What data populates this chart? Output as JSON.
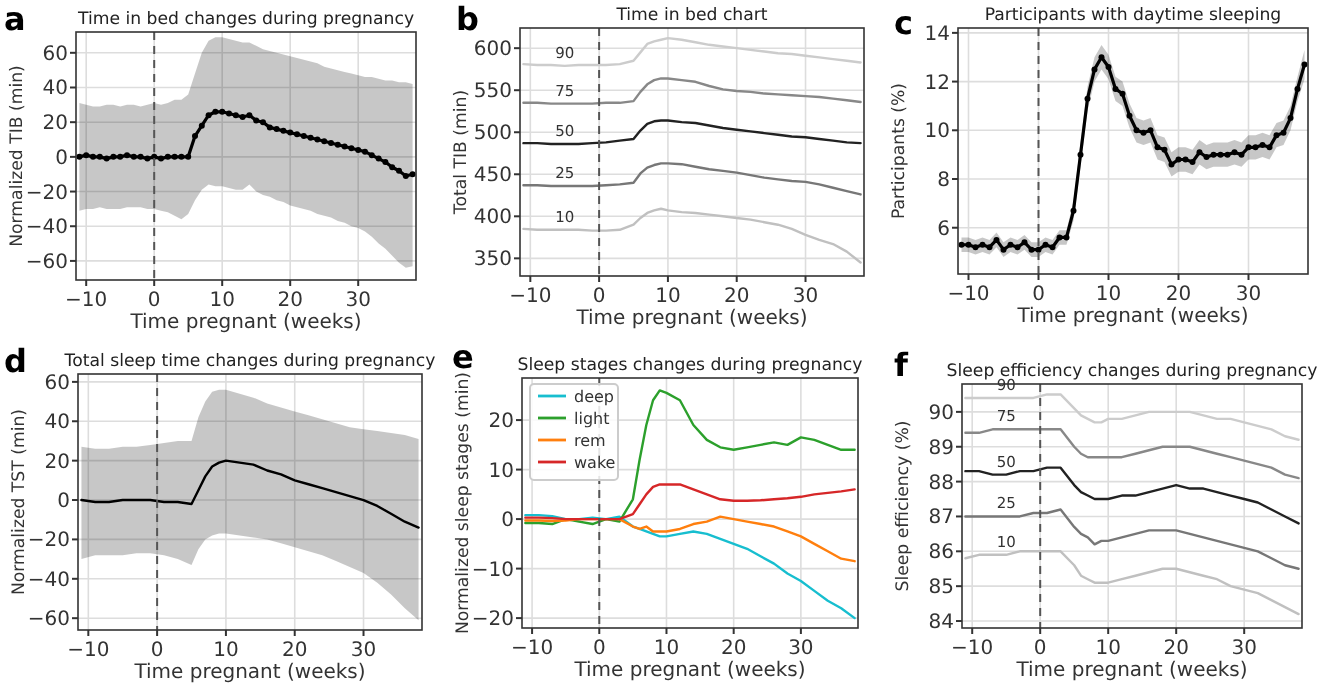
{
  "chart_data": [
    {
      "type": "line",
      "title": "Time in bed changes during pregnancy",
      "xlabel": "Time pregnant (weeks)",
      "ylabel": "Normalized TIB (min)",
      "annotations": [
        "a"
      ],
      "grid": true,
      "marker": "circle",
      "legend": false,
      "xlim": [
        -11.5,
        38.5
      ],
      "xticks": [
        -10,
        0,
        10,
        20,
        30
      ],
      "ylim": [
        -71,
        72
      ],
      "yticks": [
        -60,
        -40,
        -20,
        0,
        20,
        40,
        60
      ],
      "ref_lines": [
        {
          "axis": "x",
          "value": 0,
          "line_style": "dashed",
          "color": "#555555"
        }
      ],
      "x": [
        -11,
        -10,
        -9,
        -8,
        -7,
        -6,
        -5,
        -4,
        -3,
        -2,
        -1,
        0,
        1,
        2,
        3,
        4,
        5,
        6,
        7,
        8,
        9,
        10,
        11,
        12,
        13,
        14,
        15,
        16,
        17,
        18,
        19,
        20,
        21,
        22,
        23,
        24,
        25,
        26,
        27,
        28,
        29,
        30,
        31,
        32,
        33,
        34,
        35,
        36,
        37,
        38
      ],
      "series": [
        {
          "color": "#000000",
          "values": [
            0,
            1,
            0,
            0,
            -1,
            0,
            0,
            1,
            0,
            0,
            -1,
            0,
            -1,
            0,
            0,
            0,
            0,
            12,
            18,
            24,
            26,
            26,
            25,
            24,
            23,
            24,
            21,
            20,
            17,
            16,
            15,
            14,
            13,
            12,
            11,
            10,
            9,
            8,
            7,
            6,
            5,
            4,
            3,
            1,
            -1,
            -3,
            -6,
            -8,
            -11,
            -10
          ],
          "lower": [
            -31,
            -30,
            -30,
            -29,
            -30,
            -30,
            -30,
            -29,
            -29,
            -29,
            -30,
            -30,
            -31,
            -32,
            -34,
            -36,
            -33,
            -25,
            -19,
            -16,
            -17,
            -17,
            -18,
            -19,
            -19,
            -16,
            -20,
            -22,
            -23,
            -25,
            -26,
            -28,
            -29,
            -30,
            -31,
            -33,
            -34,
            -35,
            -37,
            -38,
            -40,
            -41,
            -43,
            -46,
            -50,
            -53,
            -57,
            -61,
            -64,
            -63
          ],
          "upper": [
            31,
            30,
            29,
            29,
            30,
            30,
            29,
            30,
            30,
            29,
            30,
            31,
            30,
            31,
            33,
            33,
            36,
            48,
            60,
            67,
            69,
            69,
            68,
            67,
            66,
            66,
            64,
            62,
            61,
            60,
            59,
            58,
            57,
            56,
            55,
            54,
            52,
            51,
            50,
            49,
            48,
            47,
            46,
            46,
            45,
            44,
            44,
            43,
            43,
            42
          ]
        }
      ]
    },
    {
      "type": "line",
      "title": "Time in bed chart",
      "xlabel": "Time pregnant (weeks)",
      "ylabel": "Total TIB (min)",
      "annotations": [
        "b"
      ],
      "grid": true,
      "legend": false,
      "xlim": [
        -11.5,
        38.5
      ],
      "xticks": [
        -10,
        0,
        10,
        20,
        30
      ],
      "ylim": [
        329,
        624
      ],
      "yticks": [
        350,
        400,
        450,
        500,
        550,
        600
      ],
      "ref_lines": [
        {
          "axis": "x",
          "value": 0,
          "line_style": "dashed",
          "color": "#555555"
        }
      ],
      "x": [
        -11,
        -9,
        -7,
        -5,
        -3,
        -1,
        1,
        3,
        5,
        6,
        7,
        8,
        9,
        10,
        12,
        14,
        16,
        18,
        20,
        22,
        24,
        26,
        28,
        30,
        32,
        34,
        36,
        38
      ],
      "series": [
        {
          "name": "90",
          "color": "#cccccc",
          "values": [
            581,
            580,
            580,
            579,
            580,
            580,
            580,
            581,
            585,
            595,
            605,
            608,
            610,
            612,
            610,
            607,
            604,
            602,
            600,
            598,
            596,
            594,
            593,
            591,
            589,
            587,
            585,
            583
          ]
        },
        {
          "name": "75",
          "color": "#888888",
          "values": [
            535,
            535,
            534,
            534,
            534,
            534,
            535,
            535,
            537,
            548,
            557,
            562,
            564,
            564,
            562,
            560,
            555,
            551,
            549,
            548,
            546,
            545,
            544,
            543,
            542,
            540,
            538,
            536
          ]
        },
        {
          "name": "50",
          "color": "#222222",
          "values": [
            487,
            487,
            486,
            486,
            486,
            487,
            488,
            490,
            492,
            502,
            510,
            513,
            514,
            514,
            512,
            511,
            508,
            505,
            503,
            501,
            499,
            497,
            495,
            494,
            492,
            490,
            488,
            487
          ]
        },
        {
          "name": "25",
          "color": "#777777",
          "values": [
            437,
            437,
            436,
            436,
            436,
            436,
            437,
            438,
            440,
            451,
            458,
            461,
            463,
            463,
            462,
            459,
            456,
            454,
            452,
            449,
            446,
            444,
            442,
            441,
            438,
            434,
            430,
            426
          ]
        },
        {
          "name": "10",
          "color": "#c0c0c0",
          "values": [
            385,
            384,
            384,
            384,
            384,
            383,
            383,
            384,
            390,
            398,
            404,
            407,
            409,
            407,
            405,
            404,
            402,
            400,
            398,
            396,
            393,
            390,
            385,
            378,
            372,
            367,
            358,
            345
          ]
        }
      ]
    },
    {
      "type": "line",
      "title": "Participants with daytime sleeping",
      "xlabel": "Time pregnant (weeks)",
      "ylabel": "Participants (%)",
      "annotations": [
        "c"
      ],
      "grid": true,
      "marker": "circle",
      "legend": false,
      "xlim": [
        -11.5,
        38.5
      ],
      "xticks": [
        -10,
        0,
        10,
        20,
        30
      ],
      "ylim": [
        4.1,
        14.2
      ],
      "yticks": [
        6,
        8,
        10,
        12,
        14
      ],
      "ref_lines": [
        {
          "axis": "x",
          "value": 0,
          "line_style": "dashed",
          "color": "#555555"
        }
      ],
      "x": [
        -11,
        -10,
        -9,
        -8,
        -7,
        -6,
        -5,
        -4,
        -3,
        -2,
        -1,
        0,
        1,
        2,
        3,
        4,
        5,
        6,
        7,
        8,
        9,
        10,
        11,
        12,
        13,
        14,
        15,
        16,
        17,
        18,
        19,
        20,
        21,
        22,
        23,
        24,
        25,
        26,
        27,
        28,
        29,
        30,
        31,
        32,
        33,
        34,
        35,
        36,
        37,
        38
      ],
      "series": [
        {
          "color": "#000000",
          "values": [
            5.3,
            5.3,
            5.2,
            5.3,
            5.2,
            5.5,
            5.1,
            5.3,
            5.2,
            5.4,
            5.1,
            5.1,
            5.3,
            5.2,
            5.6,
            5.6,
            6.7,
            9.0,
            11.3,
            12.5,
            13.0,
            12.6,
            11.7,
            11.5,
            10.6,
            10.0,
            9.9,
            10.0,
            9.3,
            9.2,
            8.6,
            8.8,
            8.8,
            8.7,
            9.1,
            8.9,
            9.0,
            9.0,
            9.0,
            9.1,
            9.0,
            9.3,
            9.3,
            9.4,
            9.3,
            9.8,
            9.9,
            10.5,
            11.7,
            12.7
          ],
          "lower": [
            5.0,
            5.0,
            4.9,
            5.0,
            4.9,
            5.2,
            4.8,
            5.0,
            4.9,
            5.1,
            4.8,
            4.8,
            5.0,
            4.9,
            5.3,
            5.3,
            6.3,
            8.5,
            10.8,
            12.0,
            12.5,
            12.1,
            11.2,
            11.0,
            10.1,
            9.5,
            9.4,
            9.5,
            8.8,
            8.7,
            8.1,
            8.3,
            8.3,
            8.2,
            8.6,
            8.4,
            8.5,
            8.5,
            8.5,
            8.6,
            8.5,
            8.8,
            8.8,
            8.9,
            8.8,
            9.3,
            9.4,
            10.0,
            11.2,
            12.1
          ],
          "upper": [
            5.6,
            5.6,
            5.5,
            5.6,
            5.5,
            5.8,
            5.4,
            5.6,
            5.5,
            5.7,
            5.4,
            5.4,
            5.6,
            5.5,
            5.9,
            5.9,
            7.1,
            9.5,
            11.8,
            13.0,
            13.5,
            13.1,
            12.2,
            12.0,
            11.1,
            10.5,
            10.4,
            10.5,
            9.8,
            9.7,
            9.1,
            9.3,
            9.3,
            9.2,
            9.6,
            9.4,
            9.5,
            9.5,
            9.5,
            9.6,
            9.5,
            9.8,
            9.8,
            9.9,
            9.8,
            10.3,
            10.4,
            11.0,
            12.2,
            13.3
          ]
        }
      ]
    },
    {
      "type": "line",
      "title": "Total sleep time changes during pregnancy",
      "xlabel": "Time pregnant (weeks)",
      "ylabel": "Normalized TST (min)",
      "annotations": [
        "d"
      ],
      "grid": true,
      "legend": false,
      "xlim": [
        -11.5,
        38.5
      ],
      "xticks": [
        -10,
        0,
        10,
        20,
        30
      ],
      "ylim": [
        -66,
        64
      ],
      "yticks": [
        -60,
        -40,
        -20,
        0,
        20,
        40,
        60
      ],
      "ref_lines": [
        {
          "axis": "x",
          "value": 0,
          "line_style": "dashed",
          "color": "#555555"
        }
      ],
      "x": [
        -11,
        -9,
        -7,
        -5,
        -3,
        -1,
        1,
        3,
        5,
        6,
        7,
        8,
        9,
        10,
        12,
        14,
        16,
        18,
        20,
        22,
        24,
        26,
        28,
        30,
        32,
        34,
        36,
        38
      ],
      "series": [
        {
          "color": "#000000",
          "values": [
            0,
            -1,
            -1,
            0,
            0,
            0,
            -1,
            -1,
            -2,
            5,
            12,
            17,
            19,
            20,
            19,
            18,
            15,
            13,
            10,
            8,
            6,
            4,
            2,
            0,
            -3,
            -7,
            -11,
            -14
          ],
          "lower": [
            -30,
            -28,
            -28,
            -28,
            -27,
            -27,
            -28,
            -30,
            -33,
            -25,
            -20,
            -18,
            -17,
            -17,
            -18,
            -19,
            -20,
            -22,
            -24,
            -26,
            -28,
            -31,
            -34,
            -37,
            -42,
            -48,
            -55,
            -61
          ],
          "upper": [
            27,
            26,
            26,
            27,
            27,
            28,
            29,
            30,
            30,
            42,
            50,
            55,
            56,
            56,
            54,
            52,
            49,
            47,
            45,
            43,
            41,
            39,
            37,
            36,
            35,
            34,
            33,
            31
          ]
        }
      ]
    },
    {
      "type": "line",
      "title": "Sleep stages changes during pregnancy",
      "xlabel": "Time pregnant (weeks)",
      "ylabel": "Normalized sleep stages (min)",
      "annotations": [
        "e"
      ],
      "grid": true,
      "legend": "top left",
      "xlim": [
        -11.5,
        38.5
      ],
      "xticks": [
        -10,
        0,
        10,
        20,
        30
      ],
      "ylim": [
        -22,
        28.5
      ],
      "yticks": [
        -20,
        -10,
        0,
        10,
        20
      ],
      "ref_lines": [
        {
          "axis": "x",
          "value": 0,
          "line_style": "dashed",
          "color": "#555555"
        }
      ],
      "x": [
        -11,
        -9,
        -7,
        -5,
        -3,
        -1,
        1,
        3,
        5,
        6,
        7,
        8,
        9,
        10,
        12,
        14,
        16,
        18,
        20,
        22,
        24,
        26,
        28,
        30,
        32,
        34,
        36,
        38
      ],
      "series": [
        {
          "name": "deep",
          "color": "#17becf",
          "values": [
            0.8,
            0.8,
            0.6,
            0,
            0,
            0.3,
            0,
            0.5,
            -1.5,
            -2,
            -2.5,
            -3,
            -3.5,
            -3.5,
            -3,
            -2.5,
            -3,
            -4,
            -5,
            -6,
            -7.5,
            -9,
            -11,
            -12.5,
            -14.5,
            -16.5,
            -18,
            -20
          ]
        },
        {
          "name": "light",
          "color": "#2ca02c",
          "values": [
            -0.8,
            -0.8,
            -1,
            0,
            -0.5,
            -1,
            0,
            -0.5,
            4,
            12,
            19,
            24,
            26,
            25.5,
            24,
            19,
            16,
            14.5,
            14,
            14.5,
            15,
            15.5,
            15,
            16.5,
            16,
            15,
            14,
            14
          ]
        },
        {
          "name": "rem",
          "color": "#ff7f0e",
          "values": [
            -0.3,
            -0.3,
            -0.4,
            -0.3,
            0,
            0,
            0,
            0,
            -1.5,
            -2,
            -1.5,
            -2.5,
            -2.5,
            -2.5,
            -2,
            -1,
            -0.5,
            0.5,
            0,
            -0.5,
            -1,
            -1.5,
            -2.5,
            -3.5,
            -5,
            -6.5,
            -8,
            -8.5
          ]
        },
        {
          "name": "wake",
          "color": "#d62728",
          "values": [
            0.3,
            0.3,
            0.2,
            0,
            0,
            0,
            0,
            0,
            1,
            3,
            5,
            6.5,
            7,
            7,
            7,
            6,
            5,
            4,
            3.7,
            3.7,
            3.8,
            4,
            4.2,
            4.5,
            5,
            5.3,
            5.6,
            6
          ]
        }
      ]
    },
    {
      "type": "line",
      "title": "Sleep efficiency changes during pregnancy",
      "xlabel": "Time pregnant (weeks)",
      "ylabel": "Sleep efficiency (%)",
      "annotations": [
        "f"
      ],
      "grid": true,
      "legend": false,
      "xlim": [
        -11.5,
        38.5
      ],
      "xticks": [
        -10,
        0,
        10,
        20,
        30
      ],
      "ylim": [
        83.8,
        90.8
      ],
      "yticks": [
        84,
        85,
        86,
        87,
        88,
        89,
        90
      ],
      "ref_lines": [
        {
          "axis": "x",
          "value": 0,
          "line_style": "dashed",
          "color": "#555555"
        }
      ],
      "x": [
        -11,
        -9,
        -7,
        -5,
        -3,
        -1,
        1,
        3,
        5,
        6,
        7,
        8,
        9,
        10,
        12,
        14,
        16,
        18,
        20,
        22,
        24,
        26,
        28,
        30,
        32,
        34,
        36,
        38
      ],
      "series": [
        {
          "name": "90",
          "color": "#cccccc",
          "values": [
            90.4,
            90.4,
            90.4,
            90.4,
            90.4,
            90.4,
            90.5,
            90.5,
            90.1,
            89.9,
            89.8,
            89.7,
            89.7,
            89.8,
            89.8,
            89.9,
            90.0,
            90.0,
            90.0,
            90.0,
            89.9,
            89.8,
            89.8,
            89.7,
            89.6,
            89.5,
            89.3,
            89.2
          ]
        },
        {
          "name": "75",
          "color": "#888888",
          "values": [
            89.4,
            89.4,
            89.5,
            89.5,
            89.5,
            89.5,
            89.5,
            89.5,
            89.0,
            88.8,
            88.7,
            88.7,
            88.7,
            88.7,
            88.7,
            88.8,
            88.9,
            89.0,
            89.0,
            89.0,
            88.9,
            88.8,
            88.7,
            88.6,
            88.5,
            88.4,
            88.2,
            88.1
          ]
        },
        {
          "name": "50",
          "color": "#222222",
          "values": [
            88.3,
            88.3,
            88.2,
            88.2,
            88.3,
            88.3,
            88.4,
            88.4,
            87.9,
            87.7,
            87.6,
            87.5,
            87.5,
            87.5,
            87.6,
            87.6,
            87.7,
            87.8,
            87.9,
            87.8,
            87.8,
            87.7,
            87.6,
            87.5,
            87.4,
            87.2,
            87.0,
            86.8
          ]
        },
        {
          "name": "25",
          "color": "#777777",
          "values": [
            87.0,
            87.0,
            87.0,
            87.0,
            87.0,
            87.1,
            87.1,
            87.2,
            86.7,
            86.5,
            86.4,
            86.2,
            86.3,
            86.3,
            86.4,
            86.5,
            86.6,
            86.6,
            86.6,
            86.5,
            86.4,
            86.3,
            86.2,
            86.1,
            86.0,
            85.8,
            85.6,
            85.5
          ]
        },
        {
          "name": "10",
          "color": "#c0c0c0",
          "values": [
            85.8,
            85.9,
            85.9,
            85.9,
            86.0,
            86.0,
            86.0,
            86.0,
            85.6,
            85.3,
            85.2,
            85.1,
            85.1,
            85.1,
            85.2,
            85.3,
            85.4,
            85.5,
            85.5,
            85.4,
            85.3,
            85.2,
            85.0,
            84.9,
            84.8,
            84.6,
            84.4,
            84.2
          ]
        }
      ]
    }
  ]
}
